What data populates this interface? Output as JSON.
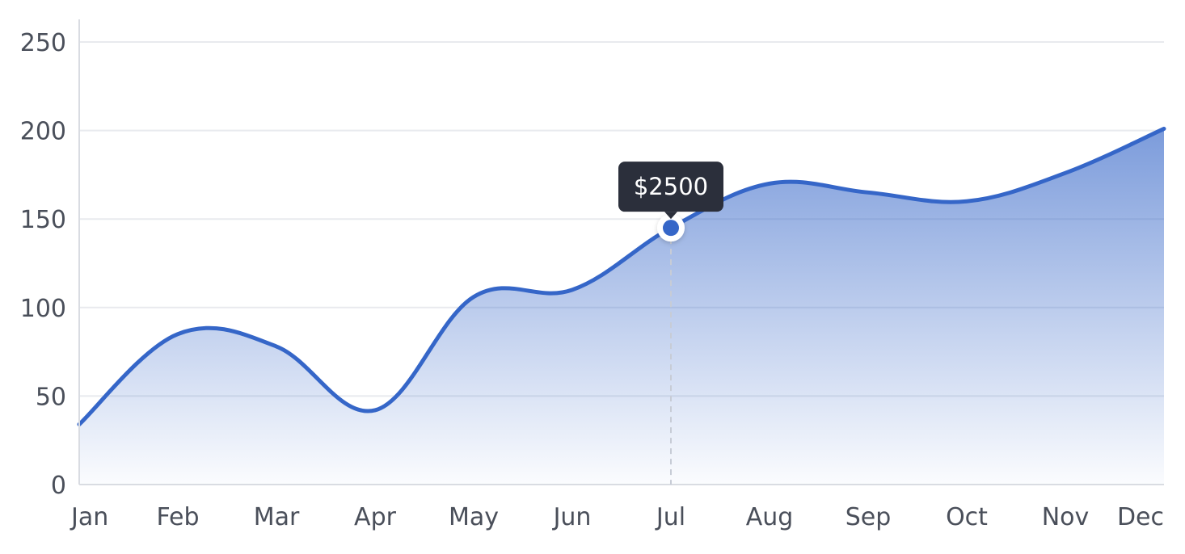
{
  "chart_data": {
    "type": "area",
    "categories": [
      "Jan",
      "Feb",
      "Mar",
      "Apr",
      "May",
      "Jun",
      "Jul",
      "Aug",
      "Sep",
      "Oct",
      "Nov",
      "Dec"
    ],
    "values": [
      34,
      85,
      78,
      42,
      106,
      110,
      145,
      170,
      165,
      160,
      176,
      201
    ],
    "ylim": [
      0,
      250
    ],
    "yticks": [
      0,
      50,
      100,
      150,
      200,
      250
    ],
    "grid": true,
    "colors": {
      "line": "#3566c8",
      "fill_top": "#3566c8",
      "grid": "#e8eaee",
      "axis": "#d9dce2",
      "tooltip_bg": "#2b2f3b"
    },
    "tooltip": {
      "category": "Jul",
      "label": "$2500"
    }
  }
}
